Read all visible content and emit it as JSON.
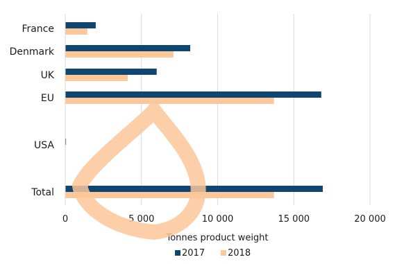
{
  "chart_data": {
    "type": "bar",
    "orientation": "horizontal",
    "categories": [
      "France",
      "Denmark",
      "UK",
      "EU",
      "USA",
      "Total"
    ],
    "series": [
      {
        "name": "2017",
        "color": "#0f4670",
        "values": [
          2000,
          8200,
          6000,
          16800,
          50,
          16900
        ]
      },
      {
        "name": "2018",
        "color": "#fcc799",
        "values": [
          1450,
          7100,
          4100,
          13700,
          0,
          13700
        ]
      }
    ],
    "xlabel": "Tonnes product weight",
    "ylabel": "",
    "xlim": [
      0,
      20000
    ],
    "xticks": [
      0,
      5000,
      10000,
      15000,
      20000
    ],
    "xtick_labels": [
      "0",
      "5 000",
      "10 000",
      "15 000",
      "20 000"
    ],
    "grid": "vertical",
    "legend": "bottom-center",
    "gridline_color": "#d9d9d9",
    "watermark_color": "#fcc799"
  }
}
